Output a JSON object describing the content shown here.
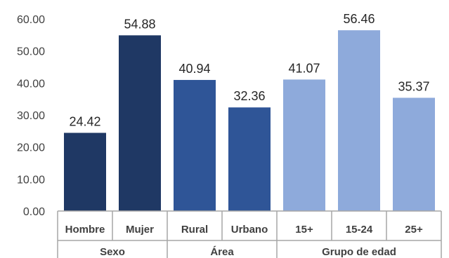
{
  "chart_data": {
    "type": "bar",
    "title": "",
    "xlabel": "",
    "ylabel": "",
    "ylim": [
      0,
      60
    ],
    "yticks": [
      "0.00",
      "10.00",
      "20.00",
      "30.00",
      "40.00",
      "50.00",
      "60.00"
    ],
    "grid": false,
    "categories": [
      "Hombre",
      "Mujer",
      "Rural",
      "Urbano",
      "15+",
      "15-24",
      "25+"
    ],
    "values": [
      24.42,
      54.88,
      40.94,
      32.36,
      41.07,
      56.46,
      35.37
    ],
    "data_labels": [
      "24.42",
      "54.88",
      "40.94",
      "32.36",
      "41.07",
      "56.46",
      "35.37"
    ],
    "bar_colors": [
      "#1f3864",
      "#1f3864",
      "#2f5597",
      "#2f5597",
      "#8eaadb",
      "#8eaadb",
      "#8eaadb"
    ],
    "groups": [
      {
        "label": "Sexo",
        "count": 2
      },
      {
        "label": "Área",
        "count": 2
      },
      {
        "label": "Grupo de edad",
        "count": 3
      }
    ]
  }
}
